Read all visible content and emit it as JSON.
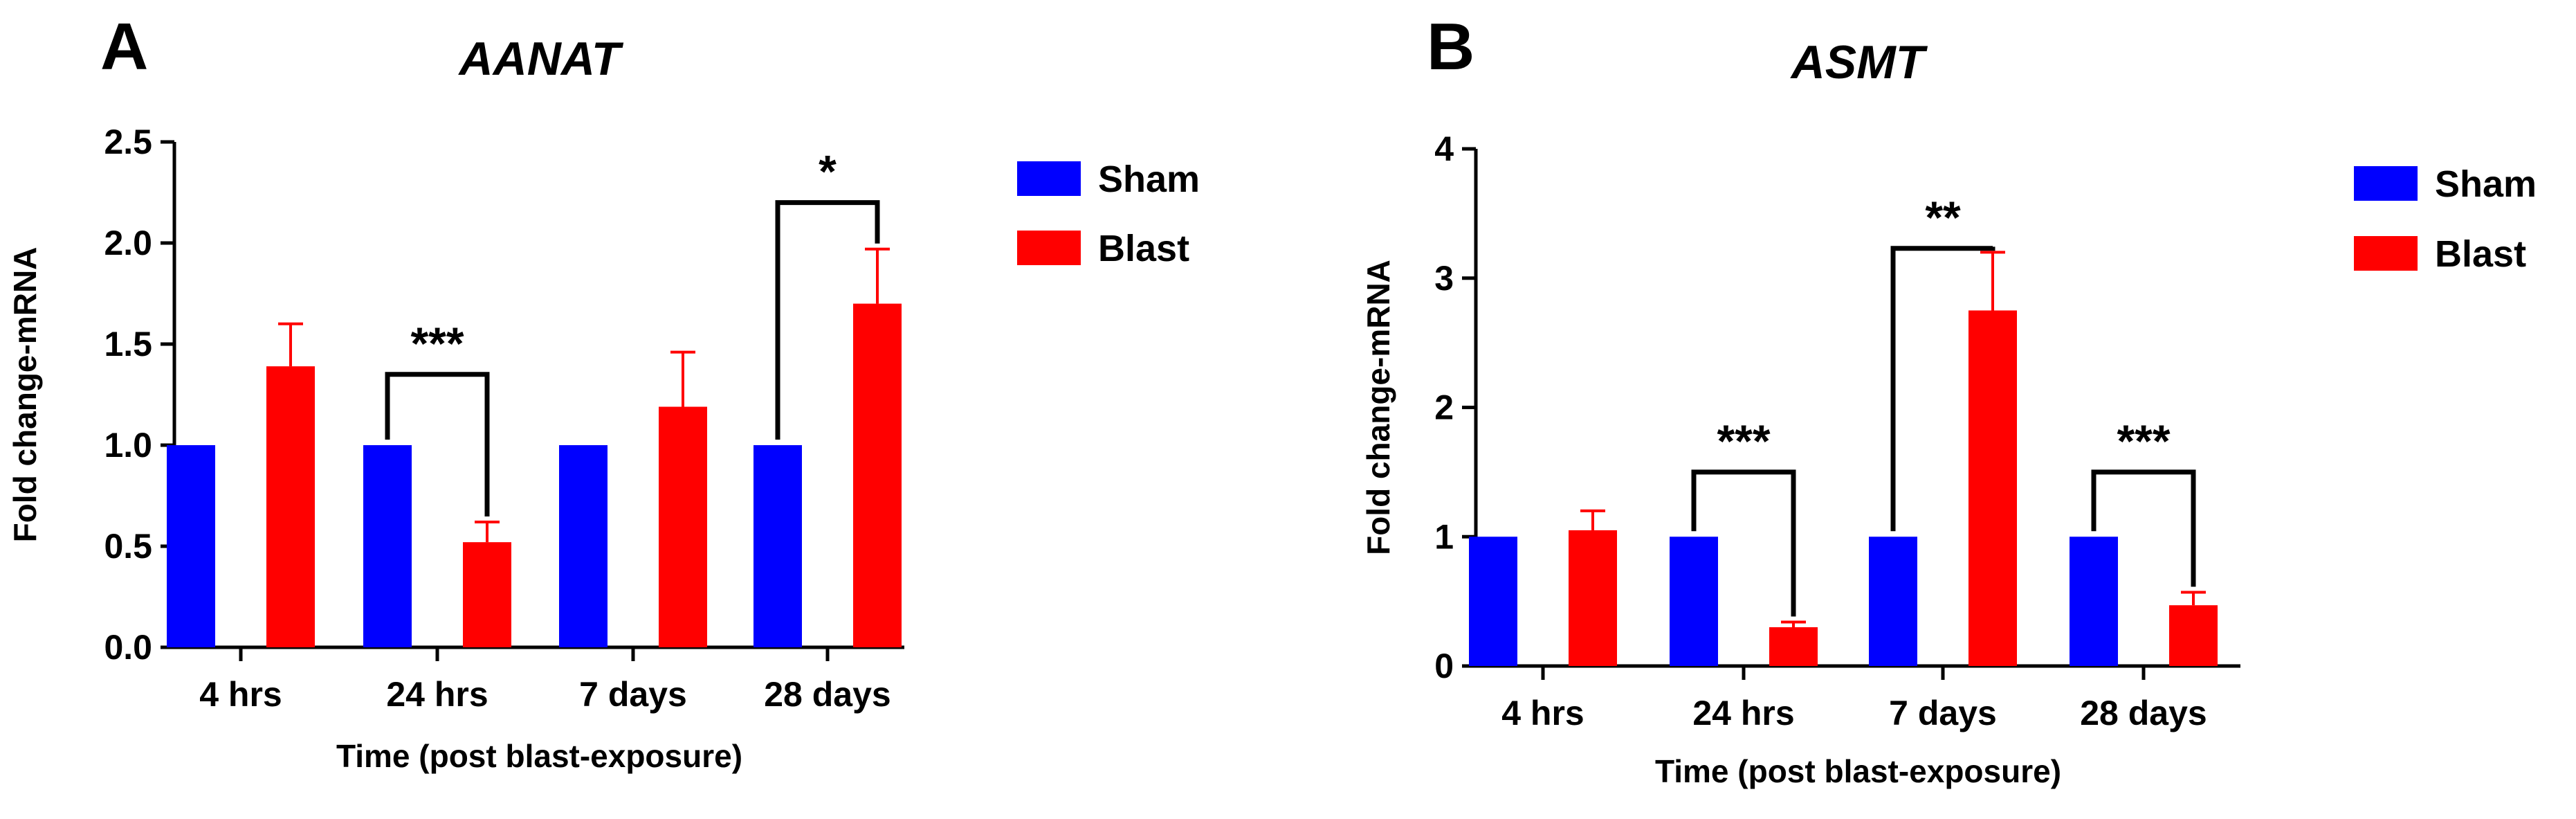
{
  "chart_data": [
    {
      "panel_label": "A",
      "type": "bar",
      "title": "AANAT",
      "xlabel": "Time (post blast-exposure)",
      "ylabel": "Fold change-mRNA",
      "ylim": [
        0,
        2.5
      ],
      "yticks": [
        0.0,
        0.5,
        1.0,
        1.5,
        2.0,
        2.5
      ],
      "ytick_labels": [
        "0.0",
        "0.5",
        "1.0",
        "1.5",
        "2.0",
        "2.5"
      ],
      "categories": [
        "4 hrs",
        "24 hrs",
        "7 days",
        "28 days"
      ],
      "series": [
        {
          "name": "Sham",
          "color": "#0000ff",
          "values": [
            1.0,
            1.0,
            1.0,
            1.0
          ],
          "errors": [
            0,
            0,
            0,
            0
          ]
        },
        {
          "name": "Blast",
          "color": "#ff0000",
          "values": [
            1.39,
            0.52,
            1.19,
            1.7
          ],
          "errors": [
            0.21,
            0.1,
            0.27,
            0.27
          ]
        }
      ],
      "legend_position": "top-right",
      "significance": [
        {
          "category_index": 1,
          "label": "***",
          "bracket_y": 1.35
        },
        {
          "category_index": 3,
          "label": "*",
          "bracket_y": 2.2
        }
      ]
    },
    {
      "panel_label": "B",
      "type": "bar",
      "title": "ASMT",
      "xlabel": "Time (post blast-exposure)",
      "ylabel": "Fold change-mRNA",
      "ylim": [
        0,
        4
      ],
      "yticks": [
        0,
        1,
        2,
        3,
        4
      ],
      "ytick_labels": [
        "0",
        "1",
        "2",
        "3",
        "4"
      ],
      "categories": [
        "4 hrs",
        "24 hrs",
        "7 days",
        "28 days"
      ],
      "series": [
        {
          "name": "Sham",
          "color": "#0000ff",
          "values": [
            1.0,
            1.0,
            1.0,
            1.0
          ],
          "errors": [
            0,
            0,
            0,
            0
          ]
        },
        {
          "name": "Blast",
          "color": "#ff0000",
          "values": [
            1.05,
            0.3,
            2.75,
            0.47
          ],
          "errors": [
            0.15,
            0.04,
            0.45,
            0.1
          ]
        }
      ],
      "legend_position": "top-right",
      "significance": [
        {
          "category_index": 1,
          "label": "***",
          "bracket_y": 1.5
        },
        {
          "category_index": 2,
          "label": "**",
          "bracket_y": 3.23
        },
        {
          "category_index": 3,
          "label": "***",
          "bracket_y": 1.5
        }
      ]
    }
  ]
}
